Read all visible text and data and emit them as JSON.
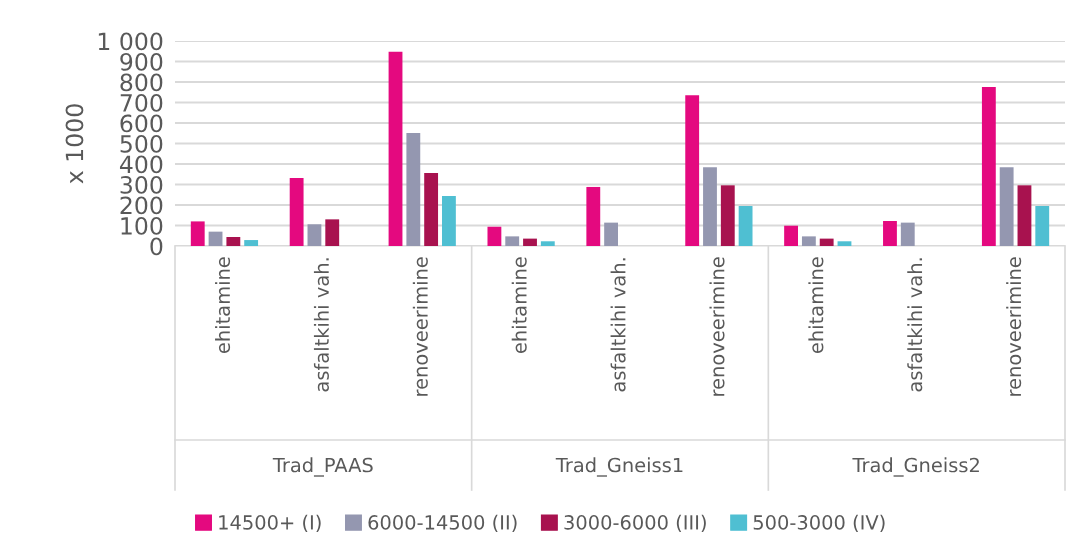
{
  "chart_data": {
    "type": "bar",
    "ylabel": "x 1000",
    "categories": [
      "ehitamine",
      "asfaltkihi vah.",
      "renoveerimine",
      "ehitamine",
      "asfaltkihi vah.",
      "renoveerimine",
      "ehitamine",
      "asfaltkihi vah.",
      "renoveerimine"
    ],
    "annotations": [
      "Trad_PAAS",
      "Trad_Gneiss1",
      "Trad_Gneiss2"
    ],
    "series": [
      {
        "name": "14500+ (I)",
        "color": "#e4097f",
        "values": [
          120,
          332,
          948,
          94,
          288,
          735,
          99,
          122,
          776
        ]
      },
      {
        "name": "6000-14500 (II)",
        "color": "#9497b0",
        "values": [
          70,
          106,
          551,
          47,
          114,
          384,
          47,
          114,
          384
        ]
      },
      {
        "name": "3000-6000 (III)",
        "color": "#a8124f",
        "values": [
          44,
          130,
          356,
          36,
          null,
          296,
          36,
          null,
          296
        ]
      },
      {
        "name": "500-3000 (IV)",
        "color": "#4fbfd2",
        "values": [
          29,
          null,
          244,
          23,
          null,
          195,
          23,
          null,
          195
        ]
      }
    ],
    "ylim": [
      0,
      1000
    ],
    "yticks": [
      0,
      100,
      200,
      300,
      400,
      500,
      600,
      700,
      800,
      900,
      {
        "value": 1000,
        "label": "1 000"
      }
    ],
    "grid": "y",
    "legend": "bottom"
  }
}
